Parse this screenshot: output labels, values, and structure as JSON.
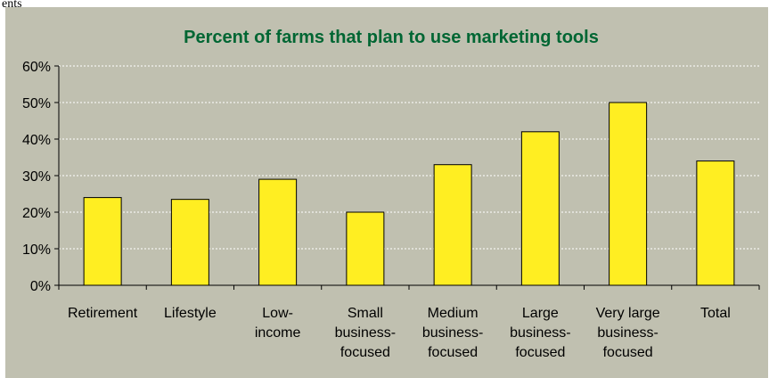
{
  "page": {
    "label": "ents"
  },
  "chart_data": {
    "type": "bar",
    "title": "Percent of farms that plan to use marketing tools",
    "xlabel": "",
    "ylabel": "",
    "categories": [
      [
        "Retirement"
      ],
      [
        "Lifestyle"
      ],
      [
        "Low-",
        "income"
      ],
      [
        "Small",
        "business-",
        "focused"
      ],
      [
        "Medium",
        "business-",
        "focused"
      ],
      [
        "Large",
        "business-",
        "focused"
      ],
      [
        "Very large",
        "business-",
        "focused"
      ],
      [
        "Total"
      ]
    ],
    "values": [
      24,
      23.5,
      29,
      20,
      33,
      42,
      50,
      34
    ],
    "ylim": [
      0,
      60
    ],
    "yticks": [
      "0%",
      "10%",
      "20%",
      "30%",
      "40%",
      "50%",
      "60%"
    ],
    "grid": true,
    "colors": {
      "bar": "#ffee22",
      "bar_stroke": "#000000",
      "title": "#006633",
      "background": "#c0c0b0",
      "grid": "#ffffff"
    }
  }
}
